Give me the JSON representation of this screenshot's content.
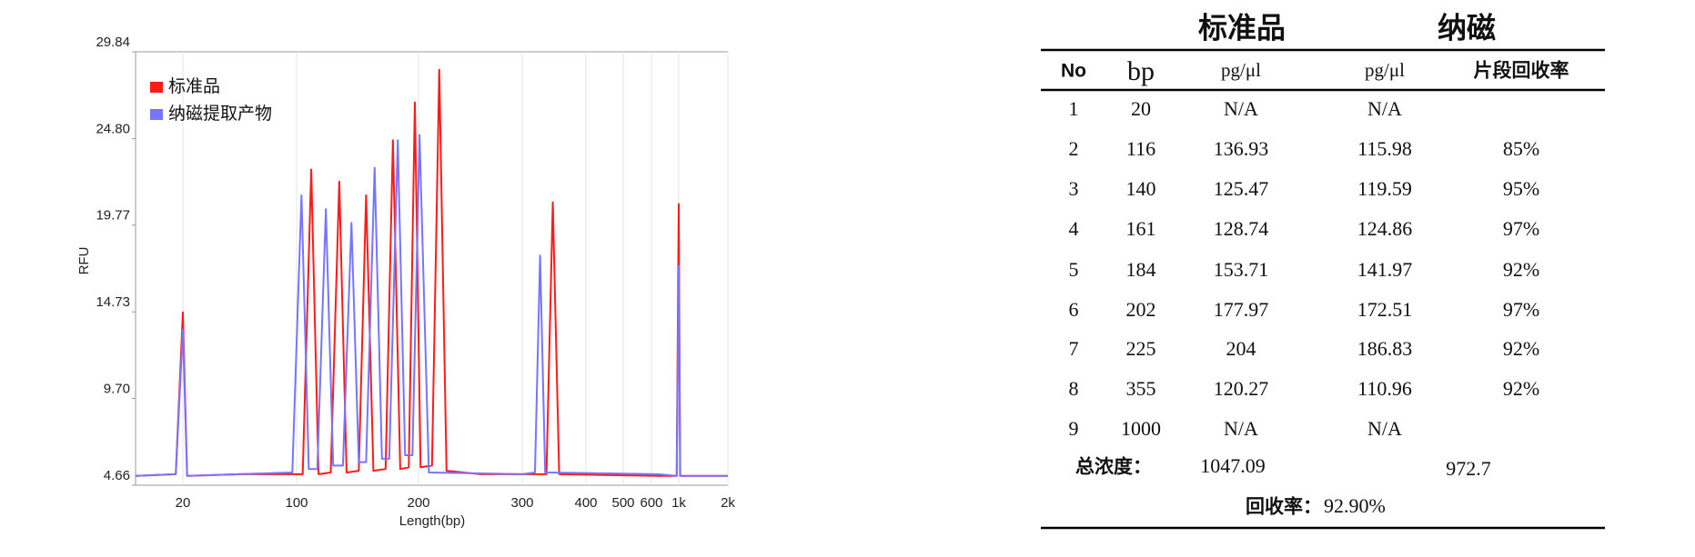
{
  "chart_data": {
    "type": "line",
    "xlabel": "Length(bp)",
    "ylabel": "RFU",
    "xlim": [
      0,
      2000
    ],
    "xticks": [
      20,
      100,
      200,
      300,
      400,
      500,
      600,
      {
        "value": 1000,
        "label": "1k"
      },
      {
        "value": 2000,
        "label": "2k"
      }
    ],
    "ylim": [
      4.66,
      29.84
    ],
    "yticks": [
      4.66,
      {
        "value": 9.7,
        "label": "9.70"
      },
      14.73,
      19.77,
      {
        "value": 24.8,
        "label": "24.80"
      },
      29.84
    ],
    "grid": "x",
    "legend": "upper left",
    "series": [
      {
        "name": "标准品",
        "color": "#ff1a1a",
        "x": [
          0,
          17,
          20,
          23,
          60,
          105,
          112,
          118,
          128,
          135,
          141,
          151,
          157,
          163,
          173,
          179,
          185,
          192,
          197,
          202,
          213,
          220,
          227,
          260,
          338,
          348,
          358,
          700,
          970,
          1000,
          1030,
          2000
        ],
        "values": [
          5.2,
          5.3,
          14.7,
          5.2,
          5.3,
          5.3,
          23.0,
          5.3,
          5.4,
          22.3,
          5.4,
          5.5,
          21.5,
          5.5,
          5.6,
          24.7,
          5.6,
          5.7,
          26.9,
          5.7,
          5.8,
          28.8,
          5.5,
          5.3,
          5.3,
          21.1,
          5.3,
          5.2,
          5.2,
          21.0,
          5.2,
          5.2
        ]
      },
      {
        "name": "纳磁提取产物",
        "color": "#7575ff",
        "x": [
          0,
          17,
          20,
          23,
          97,
          104,
          110,
          117,
          124,
          130,
          138,
          145,
          151,
          157,
          164,
          170,
          176,
          183,
          189,
          195,
          201,
          210,
          300,
          320,
          328,
          336,
          700,
          970,
          1000,
          1030,
          2000
        ],
        "values": [
          5.2,
          5.3,
          13.7,
          5.2,
          5.4,
          21.5,
          5.6,
          5.6,
          20.7,
          5.8,
          5.8,
          19.9,
          6.0,
          6.0,
          23.1,
          6.2,
          6.2,
          24.7,
          6.4,
          6.4,
          25.0,
          5.4,
          5.3,
          5.4,
          18.0,
          5.4,
          5.3,
          5.2,
          17.4,
          5.2,
          5.2
        ]
      }
    ]
  },
  "table": {
    "groups": [
      "标准品",
      "纳磁"
    ],
    "columns": [
      "No",
      "bp",
      "pg/μl",
      "pg/μl",
      "片段回收率"
    ],
    "rows": [
      [
        "1",
        "20",
        "N/A",
        "N/A"
      ],
      [
        "2",
        "116",
        "136.93",
        "115.98",
        "85%"
      ],
      [
        "3",
        "140",
        "125.47",
        "119.59",
        "95%"
      ],
      [
        "4",
        "161",
        "128.74",
        "124.86",
        "97%"
      ],
      [
        "5",
        "184",
        "153.71",
        "141.97",
        "92%"
      ],
      [
        "6",
        "202",
        "177.97",
        "172.51",
        "97%"
      ],
      [
        "7",
        "225",
        "204",
        "186.83",
        "92%"
      ],
      [
        "8",
        "355",
        "120.27",
        "110.96",
        "92%"
      ],
      [
        "9",
        "1000",
        "N/A",
        "N/A"
      ]
    ],
    "total": {
      "label": "总浓度：",
      "values": [
        "1047.09",
        "972.7"
      ]
    },
    "recovery": {
      "label": "回收率：",
      "value": "92.90%"
    }
  }
}
